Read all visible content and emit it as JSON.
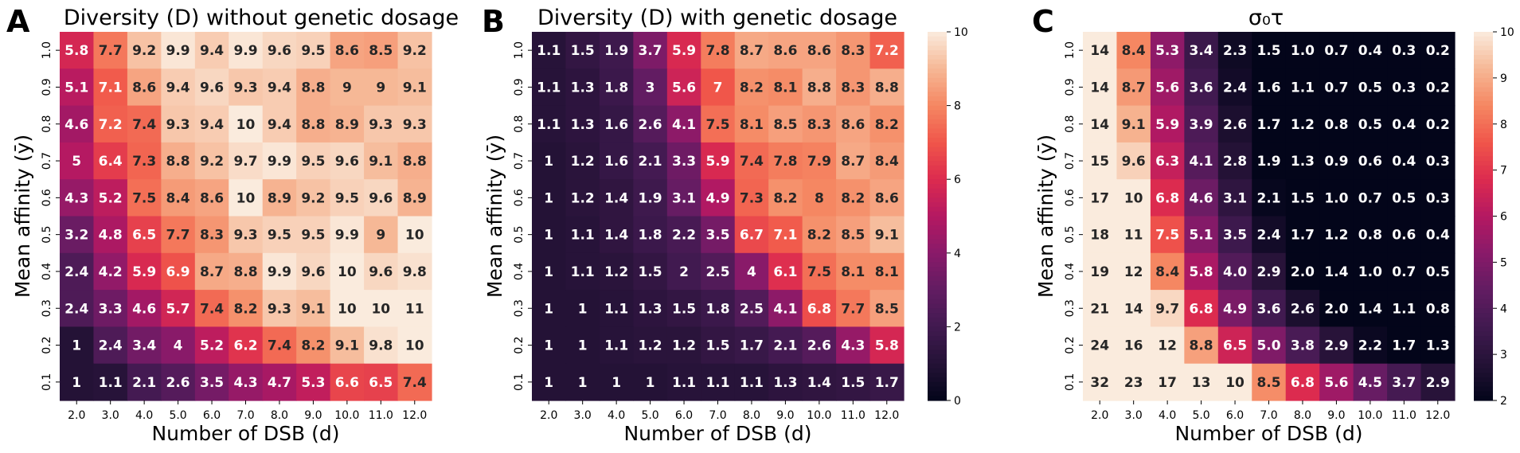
{
  "chart_data": [
    {
      "type": "heatmap",
      "panel_label": "A",
      "title": "Diversity (D) without genetic dosage",
      "xlabel": "Number of DSB (d)",
      "ylabel": "Mean affinity (ȳ)",
      "x_ticks": [
        "2.0",
        "3.0",
        "4.0",
        "5.0",
        "6.0",
        "7.0",
        "8.0",
        "9.0",
        "10.0",
        "11.0",
        "12.0"
      ],
      "y_ticks": [
        "1.0",
        "0.9",
        "0.8",
        "0.7",
        "0.6",
        "0.5",
        "0.4",
        "0.3",
        "0.2",
        "0.1"
      ],
      "colorscale": "rocket",
      "vmin": 0,
      "vmax": 10,
      "colorbar": false,
      "values": [
        [
          5.8,
          7.7,
          9.2,
          9.9,
          9.4,
          9.9,
          9.6,
          9.5,
          8.6,
          8.5,
          9.2
        ],
        [
          5.1,
          7.1,
          8.6,
          9.4,
          9.6,
          9.3,
          9.4,
          8.8,
          9,
          9,
          9.1
        ],
        [
          4.6,
          7.2,
          7.4,
          9.3,
          9.4,
          10,
          9.4,
          8.8,
          8.9,
          9.3,
          9.3
        ],
        [
          5,
          6.4,
          7.3,
          8.8,
          9.2,
          9.7,
          9.9,
          9.5,
          9.6,
          9.1,
          8.8
        ],
        [
          4.3,
          5.2,
          7.5,
          8.4,
          8.6,
          10,
          8.9,
          9.2,
          9.5,
          9.6,
          8.9
        ],
        [
          3.2,
          4.8,
          6.5,
          7.7,
          8.3,
          9.3,
          9.5,
          9.5,
          9.9,
          9,
          10
        ],
        [
          2.4,
          4.2,
          5.9,
          6.9,
          8.7,
          8.8,
          9.9,
          9.6,
          10,
          9.6,
          9.8
        ],
        [
          2.4,
          3.3,
          4.6,
          5.7,
          7.4,
          8.2,
          9.3,
          9.1,
          10,
          10,
          11
        ],
        [
          1,
          2.4,
          3.4,
          4,
          5.2,
          6.2,
          7.4,
          8.2,
          9.1,
          9.8,
          10
        ],
        [
          1,
          1.1,
          2.1,
          2.6,
          3.5,
          4.3,
          4.7,
          5.3,
          6.6,
          6.5,
          7.4
        ]
      ],
      "labels": [
        [
          "5.8",
          "7.7",
          "9.2",
          "9.9",
          "9.4",
          "9.9",
          "9.6",
          "9.5",
          "8.6",
          "8.5",
          "9.2"
        ],
        [
          "5.1",
          "7.1",
          "8.6",
          "9.4",
          "9.6",
          "9.3",
          "9.4",
          "8.8",
          "9",
          "9",
          "9.1"
        ],
        [
          "4.6",
          "7.2",
          "7.4",
          "9.3",
          "9.4",
          "10",
          "9.4",
          "8.8",
          "8.9",
          "9.3",
          "9.3"
        ],
        [
          "5",
          "6.4",
          "7.3",
          "8.8",
          "9.2",
          "9.7",
          "9.9",
          "9.5",
          "9.6",
          "9.1",
          "8.8"
        ],
        [
          "4.3",
          "5.2",
          "7.5",
          "8.4",
          "8.6",
          "10",
          "8.9",
          "9.2",
          "9.5",
          "9.6",
          "8.9"
        ],
        [
          "3.2",
          "4.8",
          "6.5",
          "7.7",
          "8.3",
          "9.3",
          "9.5",
          "9.5",
          "9.9",
          "9",
          "10"
        ],
        [
          "2.4",
          "4.2",
          "5.9",
          "6.9",
          "8.7",
          "8.8",
          "9.9",
          "9.6",
          "10",
          "9.6",
          "9.8"
        ],
        [
          "2.4",
          "3.3",
          "4.6",
          "5.7",
          "7.4",
          "8.2",
          "9.3",
          "9.1",
          "10",
          "10",
          "11"
        ],
        [
          "1",
          "2.4",
          "3.4",
          "4",
          "5.2",
          "6.2",
          "7.4",
          "8.2",
          "9.1",
          "9.8",
          "10"
        ],
        [
          "1",
          "1.1",
          "2.1",
          "2.6",
          "3.5",
          "4.3",
          "4.7",
          "5.3",
          "6.6",
          "6.5",
          "7.4"
        ]
      ]
    },
    {
      "type": "heatmap",
      "panel_label": "B",
      "title": "Diversity (D) with genetic dosage",
      "xlabel": "Number of DSB (d)",
      "ylabel": "Mean affinity (ȳ)",
      "x_ticks": [
        "2.0",
        "3.0",
        "4.0",
        "5.0",
        "6.0",
        "7.0",
        "8.0",
        "9.0",
        "10.0",
        "11.0",
        "12.0"
      ],
      "y_ticks": [
        "1.0",
        "0.9",
        "0.8",
        "0.7",
        "0.6",
        "0.5",
        "0.4",
        "0.3",
        "0.2",
        "0.1"
      ],
      "colorscale": "rocket",
      "vmin": 0,
      "vmax": 10,
      "colorbar": true,
      "colorbar_ticks": [
        "0",
        "2",
        "4",
        "6",
        "8",
        "10"
      ],
      "values": [
        [
          1.1,
          1.5,
          1.9,
          3.7,
          5.9,
          7.8,
          8.7,
          8.6,
          8.6,
          8.3,
          7.2
        ],
        [
          1.1,
          1.3,
          1.8,
          3,
          5.6,
          7,
          8.2,
          8.1,
          8.8,
          8.3,
          8.8
        ],
        [
          1.1,
          1.3,
          1.6,
          2.6,
          4.1,
          7.5,
          8.1,
          8.5,
          8.3,
          8.6,
          8.2
        ],
        [
          1,
          1.2,
          1.6,
          2.1,
          3.3,
          5.9,
          7.4,
          7.8,
          7.9,
          8.7,
          8.4
        ],
        [
          1,
          1.2,
          1.4,
          1.9,
          3.1,
          4.9,
          7.3,
          8.2,
          8,
          8.2,
          8.6
        ],
        [
          1,
          1.1,
          1.4,
          1.8,
          2.2,
          3.5,
          6.7,
          7.1,
          8.2,
          8.5,
          9.1
        ],
        [
          1,
          1.1,
          1.2,
          1.5,
          2,
          2.5,
          4,
          6.1,
          7.5,
          8.1,
          8.1
        ],
        [
          1,
          1,
          1.1,
          1.3,
          1.5,
          1.8,
          2.5,
          4.1,
          6.8,
          7.7,
          8.5
        ],
        [
          1,
          1,
          1.1,
          1.2,
          1.2,
          1.5,
          1.7,
          2.1,
          2.6,
          4.3,
          5.8
        ],
        [
          1,
          1,
          1,
          1,
          1.1,
          1.1,
          1.1,
          1.3,
          1.4,
          1.5,
          1.7
        ]
      ],
      "labels": [
        [
          "1.1",
          "1.5",
          "1.9",
          "3.7",
          "5.9",
          "7.8",
          "8.7",
          "8.6",
          "8.6",
          "8.3",
          "7.2"
        ],
        [
          "1.1",
          "1.3",
          "1.8",
          "3",
          "5.6",
          "7",
          "8.2",
          "8.1",
          "8.8",
          "8.3",
          "8.8"
        ],
        [
          "1.1",
          "1.3",
          "1.6",
          "2.6",
          "4.1",
          "7.5",
          "8.1",
          "8.5",
          "8.3",
          "8.6",
          "8.2"
        ],
        [
          "1",
          "1.2",
          "1.6",
          "2.1",
          "3.3",
          "5.9",
          "7.4",
          "7.8",
          "7.9",
          "8.7",
          "8.4"
        ],
        [
          "1",
          "1.2",
          "1.4",
          "1.9",
          "3.1",
          "4.9",
          "7.3",
          "8.2",
          "8",
          "8.2",
          "8.6"
        ],
        [
          "1",
          "1.1",
          "1.4",
          "1.8",
          "2.2",
          "3.5",
          "6.7",
          "7.1",
          "8.2",
          "8.5",
          "9.1"
        ],
        [
          "1",
          "1.1",
          "1.2",
          "1.5",
          "2",
          "2.5",
          "4",
          "6.1",
          "7.5",
          "8.1",
          "8.1"
        ],
        [
          "1",
          "1",
          "1.1",
          "1.3",
          "1.5",
          "1.8",
          "2.5",
          "4.1",
          "6.8",
          "7.7",
          "8.5"
        ],
        [
          "1",
          "1",
          "1.1",
          "1.2",
          "1.2",
          "1.5",
          "1.7",
          "2.1",
          "2.6",
          "4.3",
          "5.8"
        ],
        [
          "1",
          "1",
          "1",
          "1",
          "1.1",
          "1.1",
          "1.1",
          "1.3",
          "1.4",
          "1.5",
          "1.7"
        ]
      ]
    },
    {
      "type": "heatmap",
      "panel_label": "C",
      "title": "σ₀τ",
      "xlabel": "Number of DSB (d)",
      "ylabel": "Mean affinity (ȳ)",
      "x_ticks": [
        "2.0",
        "3.0",
        "4.0",
        "5.0",
        "6.0",
        "7.0",
        "8.0",
        "9.0",
        "10.0",
        "11.0",
        "12.0"
      ],
      "y_ticks": [
        "1.0",
        "0.9",
        "0.8",
        "0.7",
        "0.6",
        "0.5",
        "0.4",
        "0.3",
        "0.2",
        "0.1"
      ],
      "colorscale": "rocket",
      "vmin": 2,
      "vmax": 10,
      "colorbar": true,
      "colorbar_ticks": [
        "2",
        "3",
        "4",
        "5",
        "6",
        "7",
        "8",
        "9",
        "10"
      ],
      "values": [
        [
          14,
          8.4,
          5.3,
          3.4,
          2.3,
          1.5,
          1.0,
          0.7,
          0.4,
          0.3,
          0.2
        ],
        [
          14,
          8.7,
          5.6,
          3.6,
          2.4,
          1.6,
          1.1,
          0.7,
          0.5,
          0.3,
          0.2
        ],
        [
          14,
          9.1,
          5.9,
          3.9,
          2.6,
          1.7,
          1.2,
          0.8,
          0.5,
          0.4,
          0.2
        ],
        [
          15,
          9.6,
          6.3,
          4.1,
          2.8,
          1.9,
          1.3,
          0.9,
          0.6,
          0.4,
          0.3
        ],
        [
          17,
          10,
          6.8,
          4.6,
          3.1,
          2.1,
          1.5,
          1.0,
          0.7,
          0.5,
          0.3
        ],
        [
          18,
          11,
          7.5,
          5.1,
          3.5,
          2.4,
          1.7,
          1.2,
          0.8,
          0.6,
          0.4
        ],
        [
          19,
          12,
          8.4,
          5.8,
          4.0,
          2.9,
          2.0,
          1.4,
          1.0,
          0.7,
          0.5
        ],
        [
          21,
          14,
          9.7,
          6.8,
          4.9,
          3.6,
          2.6,
          2.0,
          1.4,
          1.1,
          0.8
        ],
        [
          24,
          16,
          12,
          8.8,
          6.5,
          5.0,
          3.8,
          2.9,
          2.2,
          1.7,
          1.3
        ],
        [
          32,
          23,
          17,
          13,
          10,
          8.5,
          6.8,
          5.6,
          4.5,
          3.7,
          2.9
        ]
      ],
      "labels": [
        [
          "14",
          "8.4",
          "5.3",
          "3.4",
          "2.3",
          "1.5",
          "1.0",
          "0.7",
          "0.4",
          "0.3",
          "0.2"
        ],
        [
          "14",
          "8.7",
          "5.6",
          "3.6",
          "2.4",
          "1.6",
          "1.1",
          "0.7",
          "0.5",
          "0.3",
          "0.2"
        ],
        [
          "14",
          "9.1",
          "5.9",
          "3.9",
          "2.6",
          "1.7",
          "1.2",
          "0.8",
          "0.5",
          "0.4",
          "0.2"
        ],
        [
          "15",
          "9.6",
          "6.3",
          "4.1",
          "2.8",
          "1.9",
          "1.3",
          "0.9",
          "0.6",
          "0.4",
          "0.3"
        ],
        [
          "17",
          "10",
          "6.8",
          "4.6",
          "3.1",
          "2.1",
          "1.5",
          "1.0",
          "0.7",
          "0.5",
          "0.3"
        ],
        [
          "18",
          "11",
          "7.5",
          "5.1",
          "3.5",
          "2.4",
          "1.7",
          "1.2",
          "0.8",
          "0.6",
          "0.4"
        ],
        [
          "19",
          "12",
          "8.4",
          "5.8",
          "4.0",
          "2.9",
          "2.0",
          "1.4",
          "1.0",
          "0.7",
          "0.5"
        ],
        [
          "21",
          "14",
          "9.7",
          "6.8",
          "4.9",
          "3.6",
          "2.6",
          "2.0",
          "1.4",
          "1.1",
          "0.8"
        ],
        [
          "24",
          "16",
          "12",
          "8.8",
          "6.5",
          "5.0",
          "3.8",
          "2.9",
          "2.2",
          "1.7",
          "1.3"
        ],
        [
          "32",
          "23",
          "17",
          "13",
          "10",
          "8.5",
          "6.8",
          "5.6",
          "4.5",
          "3.7",
          "2.9"
        ]
      ]
    }
  ]
}
